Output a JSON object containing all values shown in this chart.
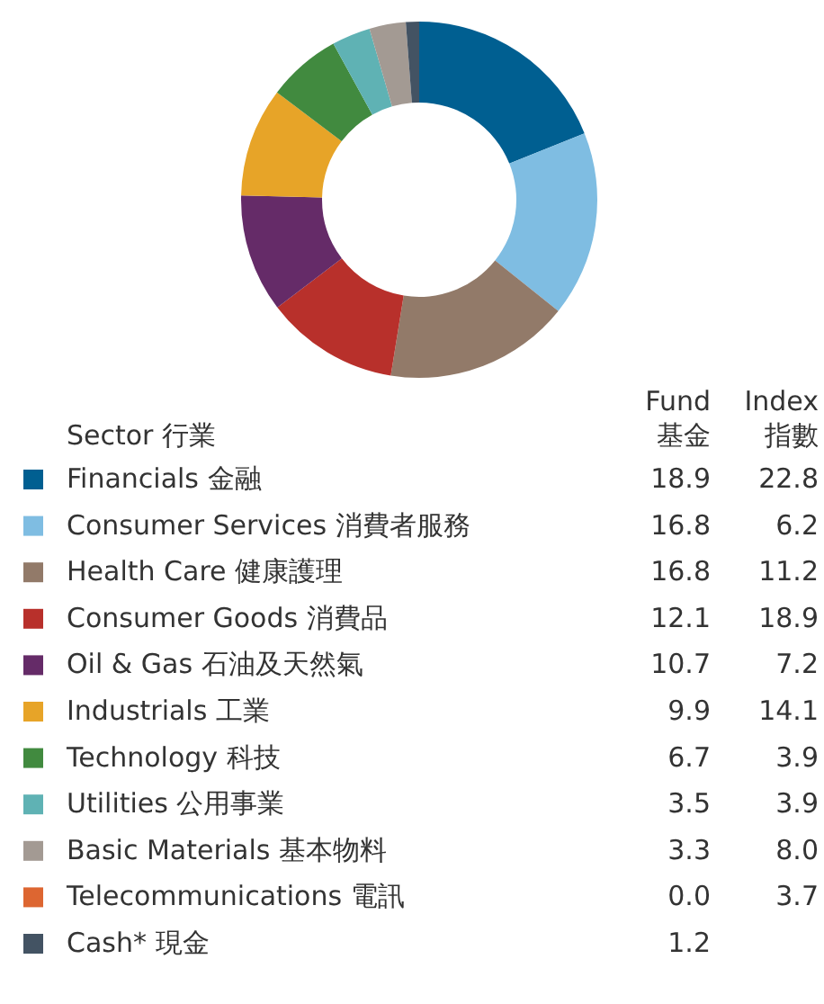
{
  "chart_data": [
    {
      "type": "donut",
      "legend_title": "Sector 行業",
      "categories": [
        "Financials 金融",
        "Consumer Services 消費者服務",
        "Health Care 健康護理",
        "Consumer Goods 消費品",
        "Oil & Gas 石油及天然氣",
        "Industrials 工業",
        "Technology 科技",
        "Utilities 公用事業",
        "Basic Materials 基本物料",
        "Telecommunications 電訊",
        "Cash* 現金"
      ],
      "colors": [
        "#005f91",
        "#7fbde2",
        "#927a69",
        "#b8302b",
        "#652b68",
        "#e7a428",
        "#418a3f",
        "#5fb2b4",
        "#a39a93",
        "#dd6631",
        "#435363"
      ],
      "series": [
        {
          "name": "Fund\n基金",
          "values": [
            18.9,
            16.8,
            16.8,
            12.1,
            10.7,
            9.9,
            6.7,
            3.5,
            3.3,
            0.0,
            1.2
          ],
          "value_labels": [
            "18.9",
            "16.8",
            "16.8",
            "12.1",
            "10.7",
            "9.9",
            "6.7",
            "3.5",
            "3.3",
            "0.0",
            "1.2"
          ]
        }
      ],
      "legend": "bottom"
    },
    {
      "type": "other",
      "series": [
        {
          "name": "Index\n指數",
          "values": [
            22.8,
            6.2,
            11.2,
            18.9,
            7.2,
            14.1,
            3.9,
            3.9,
            8.0,
            3.7,
            null
          ],
          "value_labels": [
            "22.8",
            "6.2",
            "11.2",
            "18.9",
            "7.2",
            "14.1",
            "3.9",
            "3.9",
            "8.0",
            "3.7",
            null
          ]
        }
      ],
      "data_labels": true
    }
  ]
}
